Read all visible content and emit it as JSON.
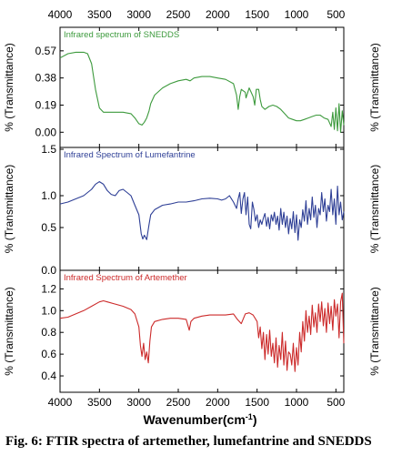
{
  "caption": "Fig. 6: FTIR spectra of artemether, lumefantrine and SNEDDS",
  "chart_data": {
    "type": "line",
    "shared_x": {
      "label_main": "Wavenumber(cm",
      "label_sup": "-1",
      "label_close": ")",
      "ticks": [
        "4000",
        "3500",
        "3000",
        "2500",
        "2000",
        "1500",
        "1000",
        "500"
      ],
      "tick_values": [
        4000,
        3500,
        3000,
        2500,
        2000,
        1500,
        1000,
        500
      ],
      "xlim": [
        4000,
        400
      ]
    },
    "panels": [
      {
        "title": "Infrared spectrum of SNEDDS",
        "ylabel": "% (Transmittance)",
        "ylim": [
          -0.03,
          0.62
        ],
        "yticks": [
          0.0,
          0.19,
          0.38,
          0.57
        ],
        "ytick_labels": [
          "0.00",
          "0.19",
          "0.38",
          "0.57"
        ],
        "color": "#3d9a3d",
        "series": [
          {
            "x": [
              4000,
              3900,
              3800,
              3700,
              3650,
              3600,
              3550,
              3500,
              3450,
              3400,
              3300,
              3200,
              3100,
              3050,
              3000,
              2960,
              2930,
              2900,
              2870,
              2850,
              2800,
              2700,
              2600,
              2500,
              2400,
              2350,
              2300,
              2200,
              2100,
              2000,
              1900,
              1800,
              1760,
              1740,
              1720,
              1700,
              1650,
              1640,
              1600,
              1550,
              1530,
              1510,
              1480,
              1460,
              1440,
              1400,
              1350,
              1300,
              1250,
              1200,
              1150,
              1100,
              1050,
              1000,
              950,
              900,
              850,
              800,
              750,
              700,
              650,
              600,
              560,
              540,
              520,
              500,
              480,
              460,
              440,
              420,
              400
            ],
            "y": [
              0.52,
              0.55,
              0.56,
              0.56,
              0.55,
              0.48,
              0.3,
              0.17,
              0.14,
              0.14,
              0.14,
              0.14,
              0.13,
              0.1,
              0.06,
              0.05,
              0.07,
              0.1,
              0.15,
              0.2,
              0.26,
              0.31,
              0.34,
              0.36,
              0.37,
              0.36,
              0.38,
              0.39,
              0.39,
              0.38,
              0.37,
              0.34,
              0.26,
              0.16,
              0.25,
              0.3,
              0.28,
              0.24,
              0.31,
              0.25,
              0.19,
              0.3,
              0.3,
              0.23,
              0.18,
              0.16,
              0.18,
              0.19,
              0.18,
              0.16,
              0.13,
              0.1,
              0.09,
              0.08,
              0.08,
              0.09,
              0.1,
              0.11,
              0.12,
              0.12,
              0.1,
              0.09,
              0.04,
              0.14,
              0.02,
              0.17,
              0.01,
              0.2,
              0.0,
              0.15,
              0.05
            ]
          }
        ]
      },
      {
        "title": "Infrared Spectrum of Lumefantrine",
        "ylabel": "% (Transmittance)",
        "ylim": [
          0.0,
          1.5
        ],
        "yticks": [
          0.0,
          0.5,
          1.0,
          1.5
        ],
        "ytick_labels": [
          "0.0",
          "0.5",
          "1.0",
          "1.5"
        ],
        "color": "#2e3f96",
        "series": [
          {
            "x": [
              4000,
              3900,
              3800,
              3700,
              3600,
              3550,
              3500,
              3450,
              3400,
              3350,
              3300,
              3250,
              3200,
              3150,
              3100,
              3050,
              3000,
              2970,
              2950,
              2930,
              2900,
              2870,
              2850,
              2800,
              2700,
              2600,
              2500,
              2400,
              2300,
              2200,
              2100,
              2000,
              1950,
              1900,
              1850,
              1800,
              1760,
              1740,
              1720,
              1700,
              1680,
              1660,
              1640,
              1620,
              1600,
              1580,
              1560,
              1540,
              1520,
              1500,
              1480,
              1460,
              1440,
              1420,
              1400,
              1380,
              1360,
              1340,
              1320,
              1300,
              1280,
              1260,
              1240,
              1220,
              1200,
              1180,
              1160,
              1140,
              1120,
              1100,
              1080,
              1060,
              1040,
              1020,
              1000,
              980,
              960,
              940,
              920,
              900,
              880,
              860,
              840,
              820,
              800,
              780,
              760,
              740,
              720,
              700,
              680,
              660,
              640,
              620,
              600,
              580,
              560,
              540,
              520,
              500,
              480,
              460,
              440,
              420,
              400
            ],
            "y": [
              0.87,
              0.9,
              0.95,
              1.0,
              1.1,
              1.18,
              1.22,
              1.18,
              1.08,
              1.02,
              1.0,
              1.08,
              1.1,
              1.05,
              1.0,
              0.85,
              0.7,
              0.4,
              0.32,
              0.38,
              0.31,
              0.55,
              0.7,
              0.78,
              0.85,
              0.87,
              0.9,
              0.9,
              0.92,
              0.95,
              0.96,
              0.95,
              0.93,
              0.95,
              1.0,
              0.9,
              0.8,
              0.95,
              1.05,
              0.72,
              0.95,
              1.05,
              0.7,
              0.98,
              0.55,
              0.48,
              0.9,
              0.78,
              0.6,
              0.7,
              0.5,
              0.62,
              0.55,
              0.65,
              0.72,
              0.52,
              0.66,
              0.48,
              0.7,
              0.6,
              0.74,
              0.55,
              0.68,
              0.46,
              0.8,
              0.55,
              0.74,
              0.5,
              0.68,
              0.4,
              0.64,
              0.48,
              0.75,
              0.42,
              0.7,
              0.3,
              0.62,
              0.5,
              0.78,
              0.6,
              0.92,
              0.55,
              0.8,
              0.62,
              0.98,
              0.66,
              0.85,
              0.5,
              0.8,
              0.7,
              1.05,
              0.75,
              0.95,
              0.6,
              0.85,
              0.75,
              1.1,
              0.7,
              0.95,
              0.55,
              1.15,
              0.7,
              0.9,
              0.62,
              0.75
            ]
          }
        ]
      },
      {
        "title": "Infrared Spectrum of Artemether",
        "ylabel": "% (Transmittance)",
        "ylim": [
          0.35,
          1.22
        ],
        "yticks": [
          0.4,
          0.6,
          0.8,
          1.0,
          1.2
        ],
        "ytick_labels": [
          "0.4",
          "0.6",
          "0.8",
          "1.0",
          "1.2"
        ],
        "color": "#cc2a2a",
        "series": [
          {
            "x": [
              4000,
              3900,
              3800,
              3700,
              3600,
              3500,
              3450,
              3400,
              3300,
              3200,
              3100,
              3050,
              3000,
              2980,
              2960,
              2940,
              2920,
              2900,
              2880,
              2860,
              2840,
              2800,
              2700,
              2600,
              2500,
              2400,
              2360,
              2340,
              2300,
              2200,
              2100,
              2000,
              1900,
              1800,
              1750,
              1700,
              1650,
              1600,
              1550,
              1500,
              1480,
              1460,
              1440,
              1420,
              1400,
              1380,
              1360,
              1340,
              1320,
              1300,
              1280,
              1260,
              1240,
              1220,
              1200,
              1180,
              1160,
              1140,
              1120,
              1100,
              1080,
              1060,
              1040,
              1020,
              1000,
              980,
              960,
              940,
              920,
              900,
              880,
              860,
              840,
              820,
              800,
              780,
              760,
              740,
              720,
              700,
              680,
              660,
              640,
              620,
              600,
              580,
              560,
              540,
              520,
              500,
              480,
              460,
              440,
              420,
              400
            ],
            "y": [
              0.93,
              0.94,
              0.97,
              1.0,
              1.04,
              1.08,
              1.09,
              1.08,
              1.06,
              1.04,
              1.01,
              0.97,
              0.85,
              0.68,
              0.58,
              0.7,
              0.55,
              0.62,
              0.52,
              0.72,
              0.85,
              0.9,
              0.92,
              0.93,
              0.93,
              0.92,
              0.82,
              0.9,
              0.93,
              0.95,
              0.96,
              0.96,
              0.96,
              0.97,
              0.92,
              0.88,
              0.97,
              0.98,
              0.96,
              0.9,
              0.75,
              0.85,
              0.65,
              0.8,
              0.55,
              0.78,
              0.6,
              0.82,
              0.58,
              0.7,
              0.52,
              0.75,
              0.48,
              0.68,
              0.55,
              0.8,
              0.5,
              0.72,
              0.45,
              0.62,
              0.6,
              0.5,
              0.7,
              0.44,
              0.66,
              0.5,
              0.8,
              0.62,
              0.9,
              0.72,
              1.0,
              0.8,
              0.95,
              0.78,
              1.05,
              0.85,
              0.98,
              0.8,
              1.06,
              0.9,
              1.08,
              0.86,
              1.02,
              0.8,
              1.07,
              0.88,
              1.04,
              0.82,
              1.1,
              0.95,
              1.06,
              0.75,
              1.08,
              1.16,
              0.7
            ]
          }
        ]
      }
    ]
  }
}
